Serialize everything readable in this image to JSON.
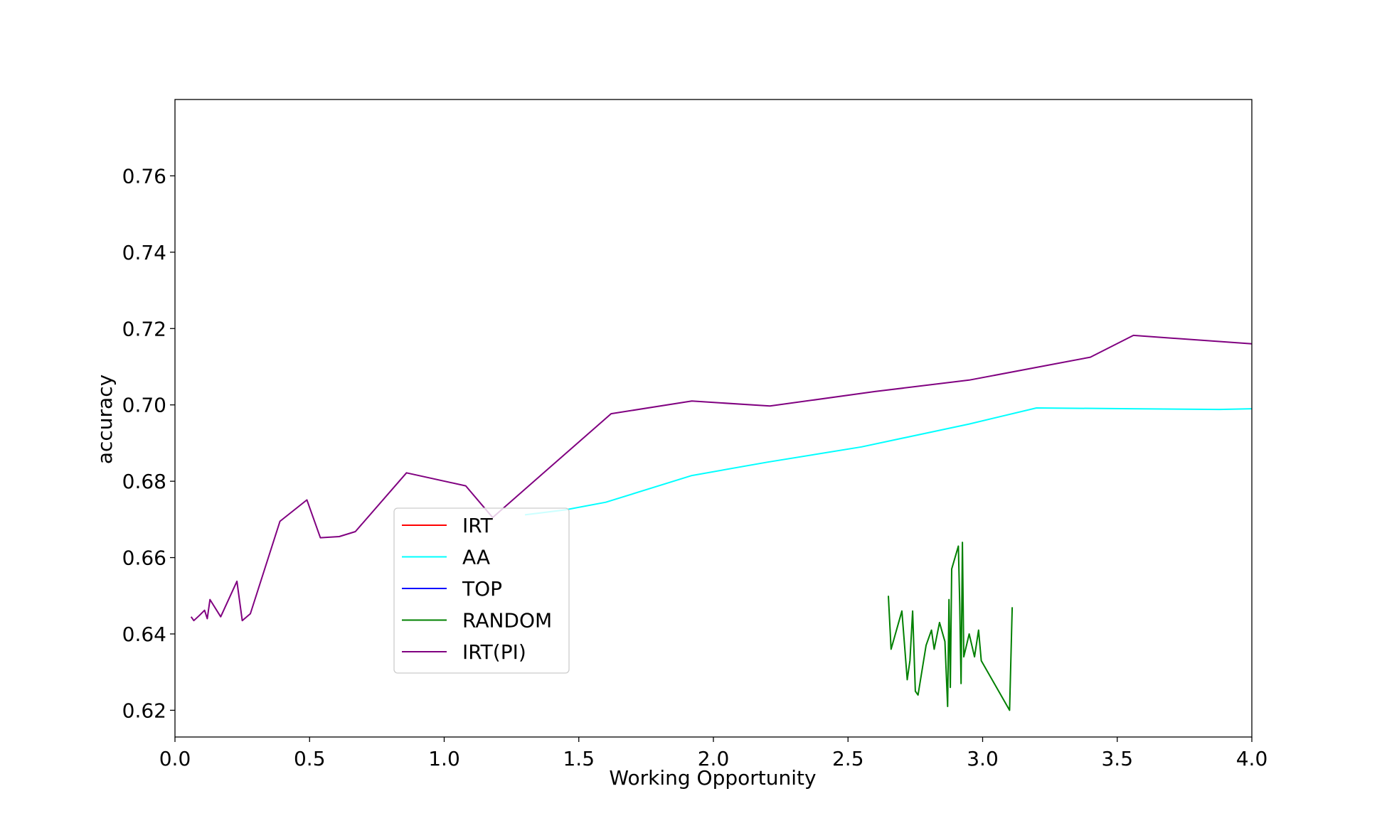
{
  "chart_data": {
    "type": "line",
    "title": "",
    "xlabel": "Working Opportunity",
    "ylabel": "accuracy",
    "xlim": [
      0.0,
      4.0
    ],
    "ylim": [
      0.613,
      0.78
    ],
    "x_ticks": [
      "0.0",
      "0.5",
      "1.0",
      "1.5",
      "2.0",
      "2.5",
      "3.0",
      "3.5",
      "4.0"
    ],
    "y_ticks": [
      "0.62",
      "0.64",
      "0.66",
      "0.68",
      "0.70",
      "0.72",
      "0.74",
      "0.76"
    ],
    "grid": false,
    "legend_position": "center-left",
    "series": [
      {
        "name": "IRT",
        "color": "#ff0000",
        "x": [],
        "y": []
      },
      {
        "name": "AA",
        "color": "#00ffff",
        "x": [
          1.3,
          1.45,
          1.6,
          1.92,
          2.2,
          2.55,
          2.95,
          3.2,
          3.55,
          3.88,
          4.0
        ],
        "y": [
          0.6712,
          0.6725,
          0.6745,
          0.6815,
          0.685,
          0.689,
          0.695,
          0.6992,
          0.699,
          0.6988,
          0.699
        ]
      },
      {
        "name": "TOP",
        "color": "#0000ff",
        "x": [],
        "y": []
      },
      {
        "name": "RANDOM",
        "color": "#008000",
        "x": [
          2.65,
          2.66,
          2.7,
          2.72,
          2.73,
          2.74,
          2.75,
          2.76,
          2.79,
          2.81,
          2.82,
          2.84,
          2.86,
          2.87,
          2.875,
          2.88,
          2.885,
          2.91,
          2.915,
          2.92,
          2.925,
          2.93,
          2.95,
          2.97,
          2.985,
          2.995,
          3.1,
          3.11
        ],
        "y": [
          0.65,
          0.636,
          0.646,
          0.628,
          0.633,
          0.646,
          0.625,
          0.624,
          0.637,
          0.641,
          0.636,
          0.643,
          0.638,
          0.621,
          0.649,
          0.626,
          0.657,
          0.663,
          0.648,
          0.627,
          0.664,
          0.634,
          0.64,
          0.634,
          0.641,
          0.633,
          0.62,
          0.647
        ]
      },
      {
        "name": "IRT(PI)",
        "color": "#800080",
        "x": [
          0.06,
          0.07,
          0.09,
          0.11,
          0.12,
          0.13,
          0.17,
          0.23,
          0.25,
          0.28,
          0.39,
          0.49,
          0.54,
          0.61,
          0.67,
          0.86,
          1.08,
          1.18,
          1.62,
          1.92,
          2.21,
          2.6,
          2.95,
          3.4,
          3.56,
          4.0
        ],
        "y": [
          0.6445,
          0.6435,
          0.6448,
          0.6462,
          0.644,
          0.649,
          0.6445,
          0.6538,
          0.6435,
          0.6453,
          0.6695,
          0.6751,
          0.6652,
          0.6655,
          0.6668,
          0.6822,
          0.6788,
          0.6705,
          0.6977,
          0.701,
          0.6997,
          0.7035,
          0.7065,
          0.7125,
          0.7182,
          0.716
        ]
      }
    ]
  }
}
